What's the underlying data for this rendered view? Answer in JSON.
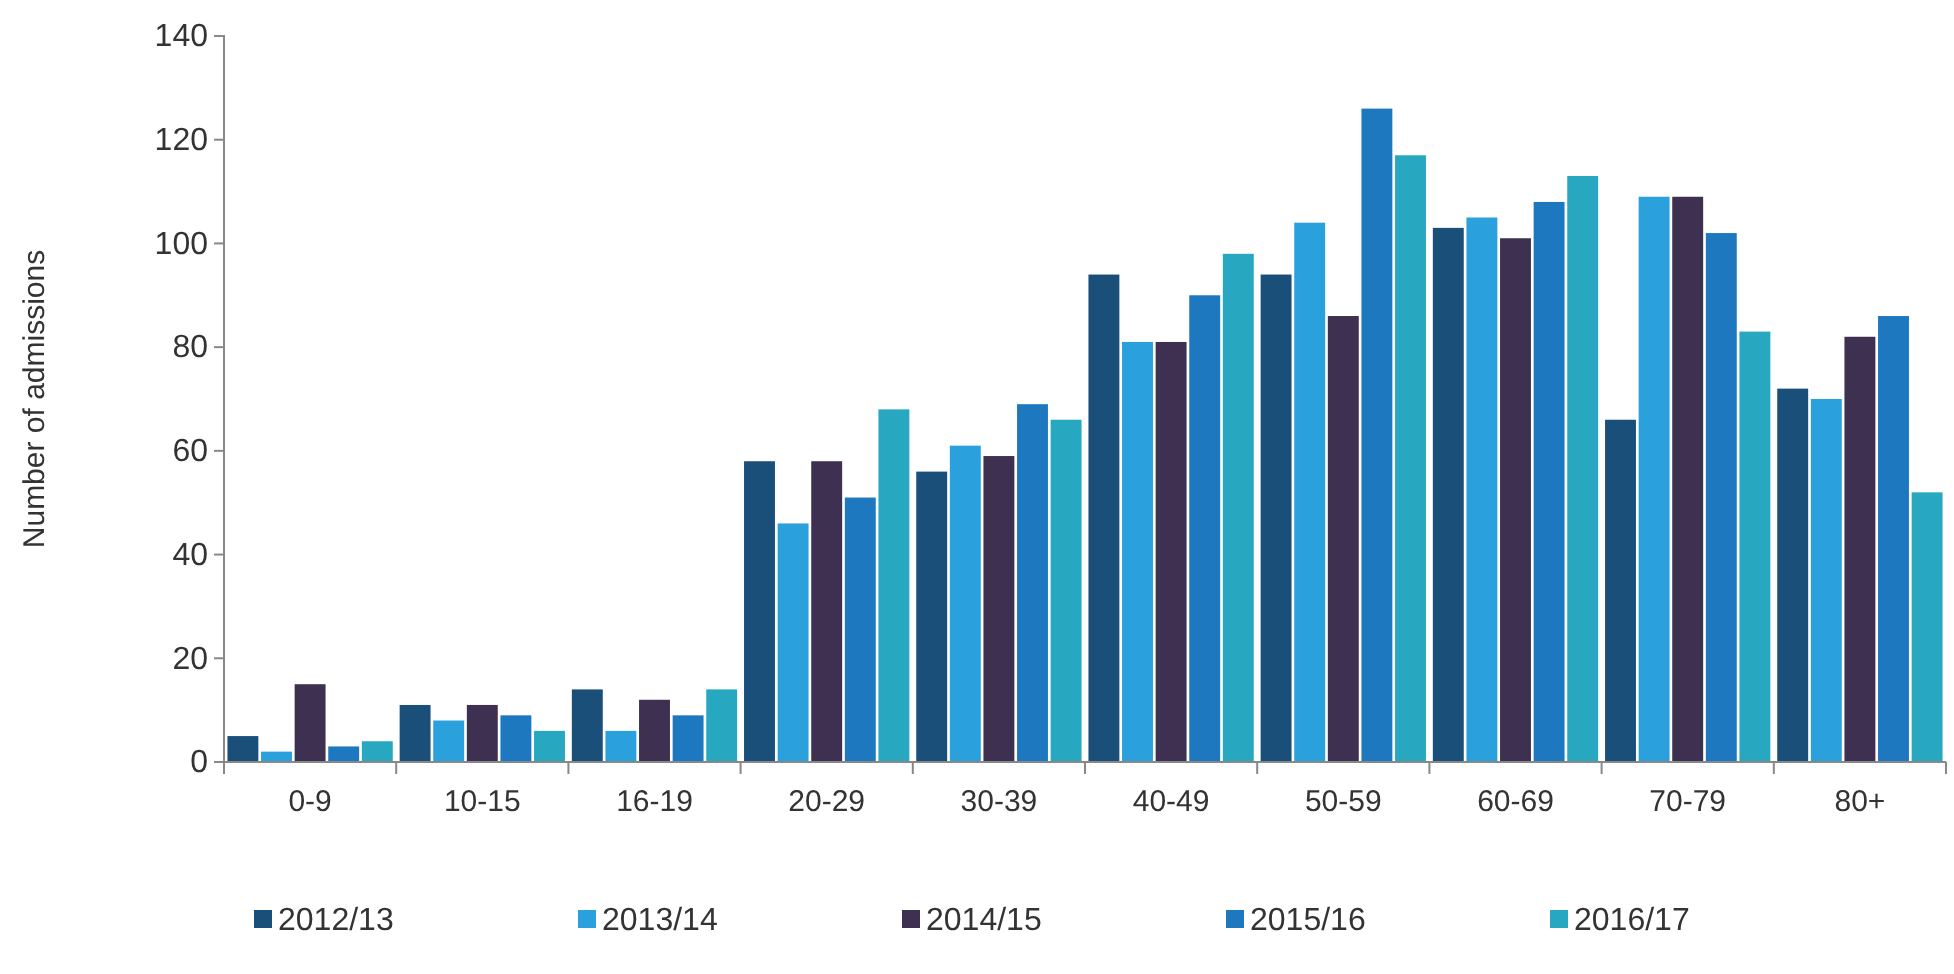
{
  "chart_data": {
    "type": "bar",
    "ylabel": "Number of admissions",
    "categories": [
      "0-9",
      "10-15",
      "16-19",
      "20-29",
      "30-39",
      "40-49",
      "50-59",
      "60-69",
      "70-79",
      "80+"
    ],
    "series": [
      {
        "name": "2012/13",
        "color": "#1a4f7a",
        "values": [
          5,
          11,
          14,
          58,
          56,
          94,
          94,
          103,
          66,
          72
        ]
      },
      {
        "name": "2013/14",
        "color": "#2aa0dc",
        "values": [
          2,
          8,
          6,
          46,
          61,
          81,
          104,
          105,
          109,
          70
        ]
      },
      {
        "name": "2014/15",
        "color": "#3d3050",
        "values": [
          15,
          11,
          12,
          58,
          59,
          81,
          86,
          101,
          109,
          82
        ]
      },
      {
        "name": "2015/16",
        "color": "#1e78c0",
        "values": [
          3,
          9,
          9,
          51,
          69,
          90,
          126,
          108,
          102,
          86
        ]
      },
      {
        "name": "2016/17",
        "color": "#28a8c0",
        "values": [
          4,
          6,
          14,
          68,
          66,
          98,
          117,
          113,
          83,
          52
        ]
      }
    ],
    "ylim": [
      0,
      140
    ],
    "yticks": [
      0,
      20,
      40,
      60,
      80,
      100,
      120,
      140
    ],
    "legend": "bottom"
  }
}
